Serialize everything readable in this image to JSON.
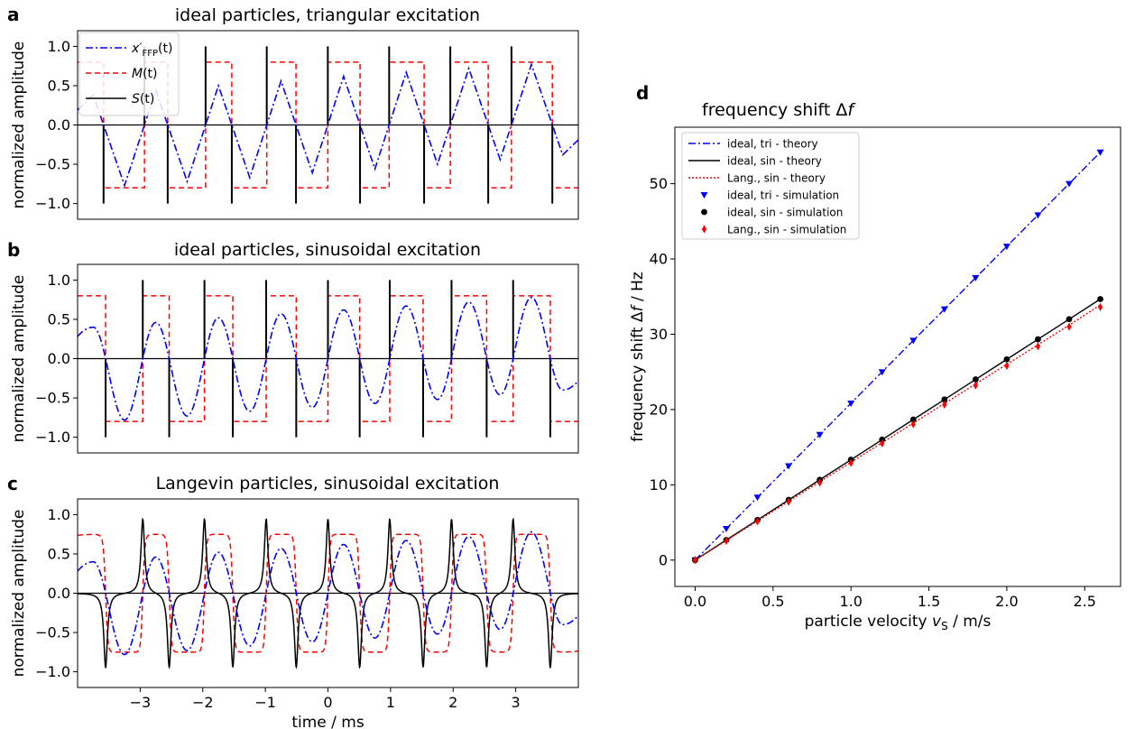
{
  "chart_data": [
    {
      "id": "a",
      "panel_label": "a",
      "type": "line",
      "title": "ideal particles, triangular excitation",
      "ylabel": "normalized amplitude",
      "xlabel": "",
      "xlim": [
        -4,
        4
      ],
      "ylim": [
        -1.2,
        1.2
      ],
      "yticks": [
        1.0,
        0.5,
        0.0,
        -0.5,
        -1.0
      ],
      "ytick_labels": [
        "1.0",
        "0.5",
        "0.0",
        "−0.5",
        "−1.0"
      ],
      "grid": false,
      "legend_position": "top-left",
      "excitation": "triangular",
      "period_ms": 1.0,
      "signal_spike_height": 1.0,
      "magnetization_level": 0.8,
      "series": [
        {
          "name": "x′_FFP(t)",
          "label_base": "x′",
          "label_sub": "FFP",
          "label_tail": "(t)",
          "color": "#0000ff",
          "dash": "8 3 2 3",
          "role": "xffp",
          "peaks": [
            {
              "t": -3.75,
              "y": 0.38
            },
            {
              "t": -3.25,
              "y": -0.77
            },
            {
              "t": -2.75,
              "y": 0.44
            },
            {
              "t": -2.25,
              "y": -0.72
            },
            {
              "t": -1.75,
              "y": 0.5
            },
            {
              "t": -1.25,
              "y": -0.67
            },
            {
              "t": -0.75,
              "y": 0.56
            },
            {
              "t": -0.25,
              "y": -0.61
            },
            {
              "t": 0.25,
              "y": 0.62
            },
            {
              "t": 0.75,
              "y": -0.56
            },
            {
              "t": 1.25,
              "y": 0.67
            },
            {
              "t": 1.75,
              "y": -0.5
            },
            {
              "t": 2.25,
              "y": 0.72
            },
            {
              "t": 2.75,
              "y": -0.44
            },
            {
              "t": 3.25,
              "y": 0.77
            },
            {
              "t": 3.75,
              "y": -0.38
            }
          ]
        },
        {
          "name": "M(t)",
          "label_base": "M",
          "label_sub": "",
          "label_tail": "(t)",
          "color": "#ff0000",
          "dash": "6 4",
          "role": "magnetization"
        },
        {
          "name": "S(t)",
          "label_base": "S",
          "label_sub": "",
          "label_tail": "(t)",
          "color": "#000000",
          "dash": "",
          "role": "signal"
        }
      ]
    },
    {
      "id": "b",
      "panel_label": "b",
      "type": "line",
      "title": "ideal particles, sinusoidal excitation",
      "ylabel": "normalized amplitude",
      "xlabel": "",
      "xlim": [
        -4,
        4
      ],
      "ylim": [
        -1.2,
        1.2
      ],
      "yticks": [
        1.0,
        0.5,
        0.0,
        -0.5,
        -1.0
      ],
      "ytick_labels": [
        "1.0",
        "0.5",
        "0.0",
        "−0.5",
        "−1.0"
      ],
      "grid": false,
      "excitation": "sinusoidal",
      "period_ms": 1.0,
      "signal_spike_height": 1.0,
      "magnetization_level": 0.8,
      "series": [
        {
          "role": "xffp",
          "color": "#0000ff",
          "dash": "8 3 2 3",
          "peaks": [
            {
              "t": -3.75,
              "y": 0.4
            },
            {
              "t": -3.25,
              "y": -0.78
            },
            {
              "t": -2.75,
              "y": 0.46
            },
            {
              "t": -2.25,
              "y": -0.73
            },
            {
              "t": -1.75,
              "y": 0.52
            },
            {
              "t": -1.25,
              "y": -0.67
            },
            {
              "t": -0.75,
              "y": 0.57
            },
            {
              "t": -0.25,
              "y": -0.62
            },
            {
              "t": 0.25,
              "y": 0.62
            },
            {
              "t": 0.75,
              "y": -0.57
            },
            {
              "t": 1.25,
              "y": 0.67
            },
            {
              "t": 1.75,
              "y": -0.52
            },
            {
              "t": 2.25,
              "y": 0.72
            },
            {
              "t": 2.75,
              "y": -0.46
            },
            {
              "t": 3.25,
              "y": 0.78
            },
            {
              "t": 3.75,
              "y": -0.4
            }
          ]
        },
        {
          "role": "magnetization",
          "color": "#ff0000",
          "dash": "6 4"
        },
        {
          "role": "signal",
          "color": "#000000",
          "dash": ""
        }
      ]
    },
    {
      "id": "c",
      "panel_label": "c",
      "type": "line",
      "title": "Langevin particles, sinusoidal excitation",
      "ylabel": "normalized amplitude",
      "xlabel": "time / ms",
      "xlim": [
        -4,
        4
      ],
      "ylim": [
        -1.2,
        1.2
      ],
      "xticks": [
        -3,
        -2,
        -1,
        0,
        1,
        2,
        3
      ],
      "xtick_labels": [
        "−3",
        "−2",
        "−1",
        "0",
        "1",
        "2",
        "3"
      ],
      "yticks": [
        1.0,
        0.5,
        0.0,
        -0.5,
        -1.0
      ],
      "ytick_labels": [
        "1.0",
        "0.5",
        "0.0",
        "−0.5",
        "−1.0"
      ],
      "grid": false,
      "excitation": "sinusoidal-langevin",
      "period_ms": 1.0,
      "signal_spike_height": 0.95,
      "magnetization_level": 0.75,
      "series": [
        {
          "role": "xffp",
          "color": "#0000ff",
          "dash": "8 3 2 3",
          "peaks": [
            {
              "t": -3.75,
              "y": 0.4
            },
            {
              "t": -3.25,
              "y": -0.78
            },
            {
              "t": -2.75,
              "y": 0.46
            },
            {
              "t": -2.25,
              "y": -0.73
            },
            {
              "t": -1.75,
              "y": 0.52
            },
            {
              "t": -1.25,
              "y": -0.67
            },
            {
              "t": -0.75,
              "y": 0.57
            },
            {
              "t": -0.25,
              "y": -0.62
            },
            {
              "t": 0.25,
              "y": 0.62
            },
            {
              "t": 0.75,
              "y": -0.57
            },
            {
              "t": 1.25,
              "y": 0.67
            },
            {
              "t": 1.75,
              "y": -0.52
            },
            {
              "t": 2.25,
              "y": 0.72
            },
            {
              "t": 2.75,
              "y": -0.46
            },
            {
              "t": 3.25,
              "y": 0.78
            },
            {
              "t": 3.75,
              "y": -0.4
            }
          ]
        },
        {
          "role": "magnetization",
          "color": "#ff0000",
          "dash": "6 4"
        },
        {
          "role": "signal",
          "color": "#000000",
          "dash": ""
        }
      ]
    },
    {
      "id": "d",
      "panel_label": "d",
      "type": "line",
      "title": "frequency shift Δf",
      "title_base": "frequency shift Δ",
      "title_ital": "f",
      "xlabel": "particle velocity v_S / m/s",
      "xlabel_pre": "particle velocity ",
      "xlabel_ital": "v",
      "xlabel_sub": "S",
      "xlabel_post": " / m/s",
      "ylabel": "frequency shift Δf / Hz",
      "ylabel_pre": "frequency shift Δ",
      "ylabel_ital": "f",
      "ylabel_post": " / Hz",
      "xlim": [
        -0.13,
        2.73
      ],
      "ylim": [
        -3.5,
        57.5
      ],
      "xticks": [
        0.0,
        0.5,
        1.0,
        1.5,
        2.0,
        2.5
      ],
      "xtick_labels": [
        "0.0",
        "0.5",
        "1.0",
        "1.5",
        "2.0",
        "2.5"
      ],
      "yticks": [
        0,
        10,
        20,
        30,
        40,
        50
      ],
      "ytick_labels": [
        "0",
        "10",
        "20",
        "30",
        "40",
        "50"
      ],
      "grid": false,
      "legend_position": "top-left",
      "x": [
        0.0,
        0.2,
        0.4,
        0.6,
        0.8,
        1.0,
        1.2,
        1.4,
        1.6,
        1.8,
        2.0,
        2.2,
        2.4,
        2.6
      ],
      "series": [
        {
          "name": "ideal, tri - theory",
          "kind": "line",
          "color": "#0000ff",
          "dash": "8 3 2 3",
          "values": [
            0.0,
            4.17,
            8.33,
            12.5,
            16.67,
            20.83,
            25.0,
            29.17,
            33.33,
            37.5,
            41.67,
            45.83,
            50.0,
            54.17
          ]
        },
        {
          "name": "ideal, sin - theory",
          "kind": "line",
          "color": "#000000",
          "dash": "",
          "values": [
            0.0,
            2.67,
            5.33,
            8.0,
            10.67,
            13.33,
            16.0,
            18.67,
            21.33,
            24.0,
            26.67,
            29.33,
            32.0,
            34.67
          ]
        },
        {
          "name": "Lang., sin - theory",
          "kind": "line",
          "color": "#ff0000",
          "dash": "2 2",
          "values": [
            0.0,
            2.6,
            5.2,
            7.8,
            10.4,
            13.0,
            15.6,
            18.2,
            20.8,
            23.4,
            26.0,
            28.6,
            31.2,
            33.9
          ]
        },
        {
          "name": "ideal, tri - simulation",
          "kind": "marker",
          "marker": "triangle-down",
          "color": "#0000ff",
          "values": [
            0.0,
            4.17,
            8.33,
            12.5,
            16.67,
            20.83,
            25.0,
            29.17,
            33.33,
            37.5,
            41.67,
            45.83,
            50.0,
            54.17
          ]
        },
        {
          "name": "ideal, sin - simulation",
          "kind": "marker",
          "marker": "circle",
          "color": "#000000",
          "values": [
            0.0,
            2.67,
            5.33,
            8.0,
            10.67,
            13.33,
            16.0,
            18.67,
            21.33,
            24.0,
            26.67,
            29.33,
            32.0,
            34.67
          ]
        },
        {
          "name": "Lang., sin - simulation",
          "kind": "marker",
          "marker": "diamond",
          "color": "#ff0000",
          "values": [
            0.0,
            2.55,
            5.15,
            7.75,
            10.3,
            12.9,
            15.5,
            18.05,
            20.65,
            23.2,
            25.8,
            28.4,
            31.0,
            33.6
          ]
        }
      ]
    }
  ]
}
